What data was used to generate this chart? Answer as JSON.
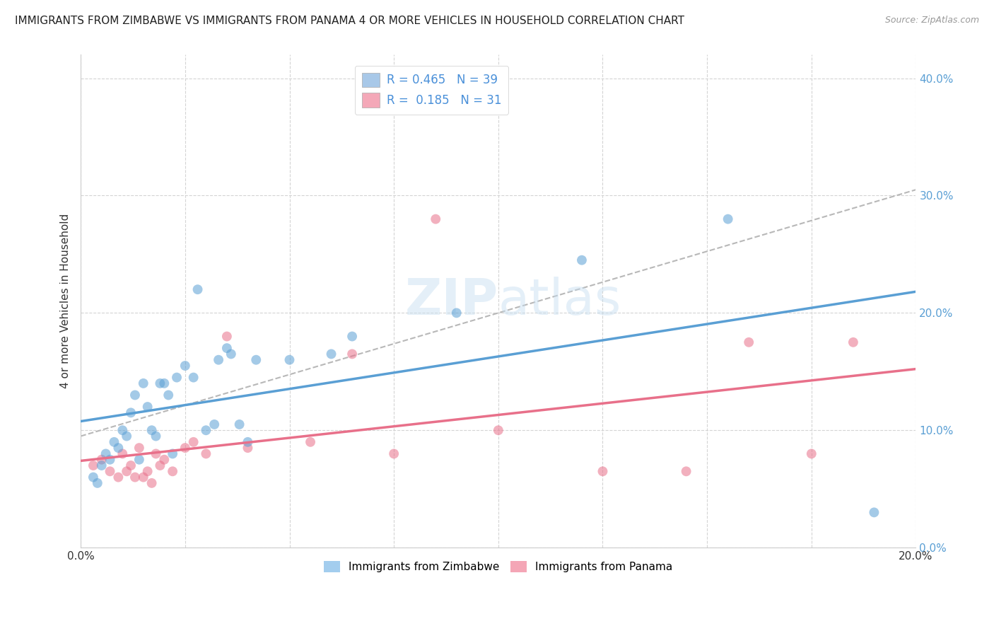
{
  "title": "IMMIGRANTS FROM ZIMBABWE VS IMMIGRANTS FROM PANAMA 4 OR MORE VEHICLES IN HOUSEHOLD CORRELATION CHART",
  "source": "Source: ZipAtlas.com",
  "ylabel": "4 or more Vehicles in Household",
  "xlim": [
    0.0,
    0.2
  ],
  "ylim": [
    0.0,
    0.42
  ],
  "xticks": [
    0.0,
    0.025,
    0.05,
    0.075,
    0.1,
    0.125,
    0.15,
    0.175,
    0.2
  ],
  "yticks": [
    0.0,
    0.1,
    0.2,
    0.3,
    0.4
  ],
  "ytick_labels": [
    "0.0%",
    "10.0%",
    "20.0%",
    "30.0%",
    "40.0%"
  ],
  "legend_R_N": [
    {
      "color": "#a8c8e8",
      "R": "0.465",
      "N": "39"
    },
    {
      "color": "#f4a8b8",
      "R": "0.185",
      "N": "31"
    }
  ],
  "series": [
    {
      "label": "Immigrants from Zimbabwe",
      "color": "#7db8e8"
    },
    {
      "label": "Immigrants from Panama",
      "color": "#f08098"
    }
  ],
  "watermark": "ZIPAtlas",
  "blue_scatter_x": [
    0.003,
    0.004,
    0.005,
    0.006,
    0.007,
    0.008,
    0.009,
    0.01,
    0.011,
    0.012,
    0.013,
    0.014,
    0.015,
    0.016,
    0.017,
    0.018,
    0.019,
    0.02,
    0.021,
    0.022,
    0.023,
    0.025,
    0.027,
    0.028,
    0.03,
    0.032,
    0.033,
    0.035,
    0.036,
    0.038,
    0.04,
    0.042,
    0.05,
    0.06,
    0.065,
    0.09,
    0.12,
    0.155,
    0.19
  ],
  "blue_scatter_y": [
    0.06,
    0.055,
    0.07,
    0.08,
    0.075,
    0.09,
    0.085,
    0.1,
    0.095,
    0.115,
    0.13,
    0.075,
    0.14,
    0.12,
    0.1,
    0.095,
    0.14,
    0.14,
    0.13,
    0.08,
    0.145,
    0.155,
    0.145,
    0.22,
    0.1,
    0.105,
    0.16,
    0.17,
    0.165,
    0.105,
    0.09,
    0.16,
    0.16,
    0.165,
    0.18,
    0.2,
    0.245,
    0.28,
    0.03
  ],
  "pink_scatter_x": [
    0.003,
    0.005,
    0.007,
    0.009,
    0.01,
    0.011,
    0.012,
    0.013,
    0.014,
    0.015,
    0.016,
    0.017,
    0.018,
    0.019,
    0.02,
    0.022,
    0.025,
    0.027,
    0.03,
    0.035,
    0.04,
    0.055,
    0.065,
    0.075,
    0.085,
    0.1,
    0.125,
    0.145,
    0.16,
    0.175,
    0.185
  ],
  "pink_scatter_y": [
    0.07,
    0.075,
    0.065,
    0.06,
    0.08,
    0.065,
    0.07,
    0.06,
    0.085,
    0.06,
    0.065,
    0.055,
    0.08,
    0.07,
    0.075,
    0.065,
    0.085,
    0.09,
    0.08,
    0.18,
    0.085,
    0.09,
    0.165,
    0.08,
    0.28,
    0.1,
    0.065,
    0.065,
    0.175,
    0.08,
    0.175
  ],
  "blue_line_color": "#5a9fd4",
  "pink_line_color": "#e8708a",
  "dashed_line_color": "#b8b8b8",
  "grid_color": "#d4d4d4",
  "background_color": "#ffffff",
  "title_fontsize": 11,
  "axis_label_fontsize": 11,
  "tick_fontsize": 11,
  "legend_fontsize": 12,
  "scatter_alpha": 0.55,
  "scatter_size": 100
}
